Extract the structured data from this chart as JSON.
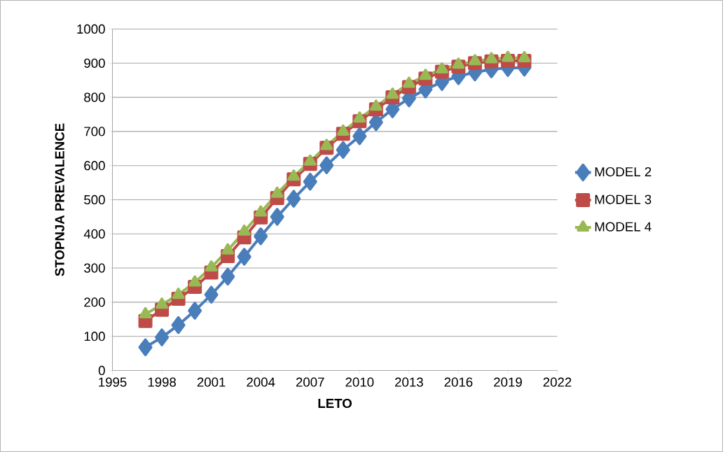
{
  "chart_data": {
    "type": "line",
    "xlabel": "LETO",
    "ylabel": "STOPNJA PREVALENCE",
    "x": [
      1997,
      1998,
      1999,
      2000,
      2001,
      2002,
      2003,
      2004,
      2005,
      2006,
      2007,
      2008,
      2009,
      2010,
      2011,
      2012,
      2013,
      2014,
      2015,
      2016,
      2017,
      2018,
      2019,
      2020
    ],
    "series": [
      {
        "name": "MODEL 2",
        "color": "#4a7ebb",
        "marker": "diamond",
        "values": [
          68,
          97,
          133,
          175,
          222,
          275,
          333,
          393,
          450,
          503,
          553,
          601,
          646,
          686,
          727,
          765,
          797,
          823,
          845,
          862,
          873,
          882,
          886,
          887
        ]
      },
      {
        "name": "MODEL 3",
        "color": "#be4b48",
        "marker": "square",
        "values": [
          145,
          178,
          210,
          245,
          287,
          335,
          390,
          448,
          505,
          560,
          605,
          652,
          693,
          730,
          765,
          800,
          830,
          855,
          875,
          890,
          900,
          905,
          907,
          907
        ]
      },
      {
        "name": "MODEL 4",
        "color": "#98b954",
        "marker": "triangle",
        "values": [
          165,
          193,
          222,
          258,
          302,
          352,
          407,
          463,
          518,
          568,
          612,
          658,
          700,
          738,
          773,
          808,
          840,
          863,
          882,
          896,
          906,
          912,
          916,
          915
        ]
      }
    ],
    "xlim": [
      1995,
      2022
    ],
    "xticks": [
      1995,
      1998,
      2001,
      2004,
      2007,
      2010,
      2013,
      2016,
      2019,
      2022
    ],
    "ylim": [
      0,
      1000
    ],
    "yticks": [
      0,
      100,
      200,
      300,
      400,
      500,
      600,
      700,
      800,
      900,
      1000
    ],
    "grid": "y",
    "legend": "right",
    "line_style": "solid"
  }
}
